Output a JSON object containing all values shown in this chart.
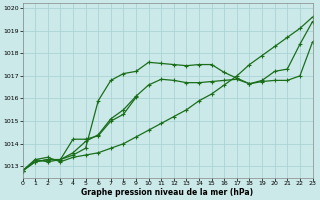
{
  "background_color": "#cce9e9",
  "grid_color": "#aad4d4",
  "line_color": "#1a6e1a",
  "xlabel": "Graphe pression niveau de la mer (hPa)",
  "xlim": [
    0,
    23
  ],
  "ylim": [
    1012.5,
    1020.2
  ],
  "yticks": [
    1013,
    1014,
    1015,
    1016,
    1017,
    1018,
    1019,
    1020
  ],
  "xticks": [
    0,
    1,
    2,
    3,
    4,
    5,
    6,
    7,
    8,
    9,
    10,
    11,
    12,
    13,
    14,
    15,
    16,
    17,
    18,
    19,
    20,
    21,
    22,
    23
  ],
  "series": [
    {
      "x": [
        0,
        1,
        2,
        3,
        4,
        5,
        6,
        7,
        8,
        9,
        10,
        11,
        12,
        13,
        14,
        15,
        16,
        17,
        18,
        19,
        20,
        21,
        22,
        23
      ],
      "y": [
        1012.8,
        1013.3,
        1013.4,
        1013.2,
        1013.4,
        1013.5,
        1013.6,
        1013.8,
        1014.0,
        1014.3,
        1014.6,
        1014.9,
        1015.2,
        1015.5,
        1015.9,
        1016.2,
        1016.6,
        1017.0,
        1017.5,
        1017.9,
        1018.3,
        1018.7,
        1019.1,
        1019.6
      ],
      "marker": "+"
    },
    {
      "x": [
        0,
        1,
        2,
        3,
        4,
        5,
        6,
        7,
        8,
        9,
        10,
        11,
        12,
        13,
        14,
        15,
        16,
        17,
        18,
        19,
        20,
        21,
        22,
        23
      ],
      "y": [
        1012.8,
        1013.2,
        1013.3,
        1013.3,
        1013.5,
        1013.8,
        1015.9,
        1016.8,
        1017.1,
        1017.2,
        1017.6,
        1017.55,
        1017.5,
        1017.45,
        1017.5,
        1017.5,
        1017.15,
        1016.9,
        1016.65,
        1016.8,
        1017.2,
        1017.3,
        1018.4,
        1019.4
      ],
      "marker": "+"
    },
    {
      "x": [
        0,
        1,
        2,
        3,
        4,
        5,
        6,
        7,
        8,
        9,
        10,
        11,
        12,
        13,
        14,
        15,
        16,
        17,
        18,
        19,
        20,
        21,
        22,
        23
      ],
      "y": [
        1012.8,
        1013.2,
        1013.3,
        1013.3,
        1013.6,
        1014.1,
        1014.4,
        1015.1,
        1015.5,
        1016.1,
        1016.6,
        1016.85,
        1016.8,
        1016.7,
        1016.7,
        1016.75,
        1016.8,
        1016.85,
        1016.65,
        1016.75,
        1016.8,
        1016.8,
        1017.0,
        1018.5
      ],
      "marker": "+"
    },
    {
      "x": [
        0,
        1,
        2,
        3,
        4,
        5,
        6,
        7,
        8,
        9
      ],
      "y": [
        1012.8,
        1013.3,
        1013.2,
        1013.3,
        1014.2,
        1014.2,
        1014.35,
        1015.0,
        1015.3,
        1016.05
      ],
      "marker": "+"
    }
  ]
}
